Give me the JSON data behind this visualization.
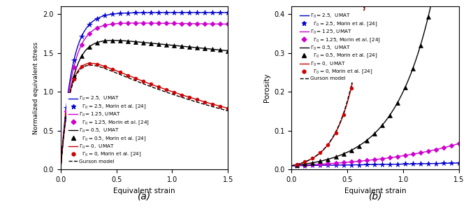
{
  "left_ylabel": "Normalized equivalent stress",
  "right_ylabel": "Porosity",
  "xlabel": "Equivalent strain",
  "left_ylim": [
    0.0,
    2.1
  ],
  "right_ylim": [
    0.0,
    0.42
  ],
  "xlim": [
    0.0,
    1.5
  ],
  "left_yticks": [
    0.0,
    0.5,
    1.0,
    1.5,
    2.0
  ],
  "right_yticks": [
    0.0,
    0.1,
    0.2,
    0.3,
    0.4
  ],
  "xticks": [
    0.0,
    0.5,
    1.0,
    1.5
  ],
  "label_a": "(a)",
  "label_b": "(b)",
  "colors": {
    "G25": "#0000cc",
    "G125": "#cc00cc",
    "G05": "#000000",
    "G0": "#cc0000",
    "gurson": "#000000"
  }
}
